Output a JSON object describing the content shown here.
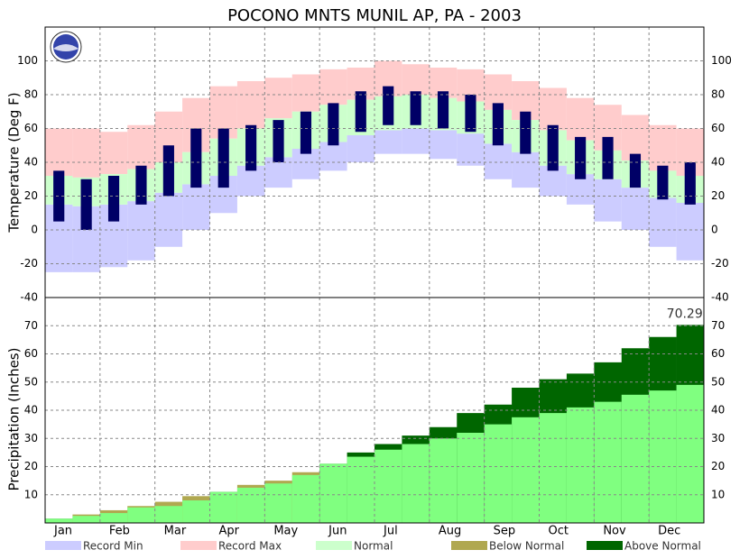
{
  "title": "POCONO MNTS MUNIL AP, PA - 2003",
  "chart_data": [
    {
      "type": "temperature-band",
      "y_label": "Temperature (Deg F)",
      "categories": [
        "Jan",
        null,
        "Feb",
        null,
        "Mar",
        null,
        "Apr",
        null,
        "May",
        null,
        "Jun",
        null,
        "Jul",
        null,
        "Aug",
        null,
        "Sep",
        null,
        "Oct",
        null,
        "Nov",
        null,
        "Dec",
        null
      ],
      "ylim": [
        -40,
        120
      ],
      "yticks": [
        -40,
        -20,
        0,
        20,
        40,
        60,
        80,
        100
      ],
      "grid": true,
      "series": [
        {
          "name": "Record Min",
          "color": "#ccccff",
          "values": [
            -25,
            -25,
            -22,
            -18,
            -10,
            0,
            10,
            20,
            25,
            30,
            35,
            40,
            45,
            45,
            42,
            38,
            30,
            25,
            20,
            15,
            5,
            0,
            -10,
            -18
          ]
        },
        {
          "name": "Record Max",
          "color": "#ffcccc",
          "values": [
            60,
            60,
            58,
            62,
            70,
            78,
            85,
            88,
            90,
            92,
            95,
            96,
            100,
            98,
            96,
            95,
            92,
            88,
            84,
            78,
            74,
            68,
            62,
            60
          ]
        },
        {
          "name": "Normal",
          "color": "#ccffcc",
          "low": [
            15,
            14,
            15,
            17,
            22,
            27,
            32,
            38,
            43,
            48,
            52,
            56,
            59,
            60,
            59,
            57,
            51,
            46,
            38,
            33,
            30,
            25,
            19,
            16
          ],
          "high": [
            32,
            31,
            33,
            36,
            40,
            46,
            54,
            60,
            66,
            70,
            74,
            77,
            79,
            80,
            78,
            76,
            71,
            65,
            59,
            53,
            47,
            41,
            35,
            32
          ]
        }
      ],
      "observed": {
        "color": "#000066",
        "low": [
          5,
          0,
          5,
          15,
          20,
          25,
          25,
          35,
          40,
          45,
          50,
          58,
          62,
          62,
          60,
          58,
          50,
          45,
          35,
          30,
          30,
          25,
          18,
          15
        ],
        "high": [
          35,
          30,
          32,
          38,
          50,
          60,
          60,
          62,
          65,
          70,
          75,
          82,
          85,
          82,
          82,
          80,
          75,
          70,
          62,
          55,
          55,
          45,
          38,
          40
        ]
      }
    },
    {
      "type": "cumulative-precip",
      "y_label": "Precipitation (Inches)",
      "categories": [
        "Jan",
        null,
        "Feb",
        null,
        "Mar",
        null,
        "Apr",
        null,
        "May",
        null,
        "Jun",
        null,
        "Jul",
        null,
        "Aug",
        null,
        "Sep",
        null,
        "Oct",
        null,
        "Nov",
        null,
        "Dec",
        null
      ],
      "ylim": [
        0,
        80
      ],
      "yticks": [
        10,
        20,
        30,
        40,
        50,
        60,
        70
      ],
      "grid": true,
      "values": [
        1.5,
        2.5,
        3.5,
        5.5,
        6,
        8,
        11,
        12.5,
        14,
        17,
        21,
        25,
        28,
        31,
        34,
        39,
        42,
        48,
        51,
        53,
        57,
        62,
        66,
        70.29
      ],
      "normal": [
        1.5,
        3,
        4.5,
        6,
        7.5,
        9.5,
        11,
        13.5,
        15,
        18,
        21,
        23.5,
        26,
        28,
        30,
        32,
        35,
        37.5,
        39,
        41,
        43,
        45.5,
        47,
        49
      ],
      "normal_color": "#80ff80",
      "total_label": "70.29",
      "legend": [
        {
          "name": "Below Normal",
          "color": "#b0a850"
        },
        {
          "name": "Above Normal",
          "color": "#006600"
        }
      ]
    }
  ]
}
